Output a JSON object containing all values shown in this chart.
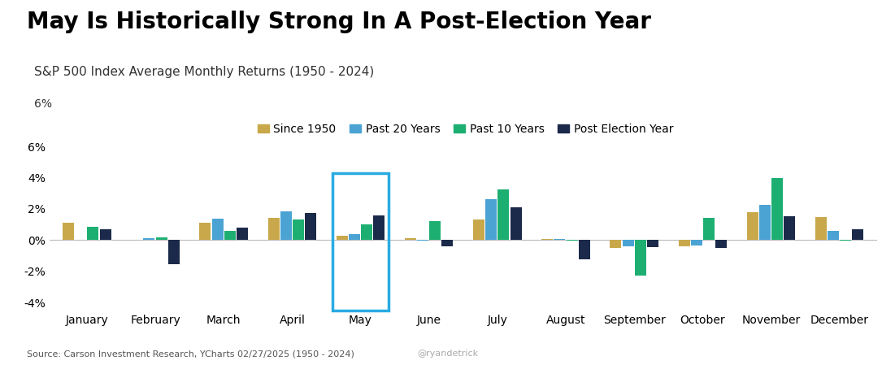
{
  "title": "May Is Historically Strong In A Post-Election Year",
  "subtitle": "S&P 500 Index Average Monthly Returns (1950 - 2024)",
  "source": "Source: Carson Investment Research, YCharts 02/27/2025 (1950 - 2024)",
  "watermark": "@ryandetrick",
  "months": [
    "January",
    "February",
    "March",
    "April",
    "May",
    "June",
    "July",
    "August",
    "September",
    "October",
    "November",
    "December"
  ],
  "series": {
    "Since 1950": [
      1.1,
      0.0,
      1.1,
      1.45,
      0.3,
      0.1,
      1.3,
      0.05,
      -0.5,
      -0.4,
      1.8,
      1.5
    ],
    "Past 20 Years": [
      0.02,
      0.1,
      1.35,
      1.85,
      0.4,
      -0.05,
      2.6,
      0.05,
      -0.4,
      -0.35,
      2.25,
      0.6
    ],
    "Past 10 Years": [
      0.85,
      0.15,
      0.6,
      1.3,
      1.0,
      1.2,
      3.25,
      -0.05,
      -2.3,
      1.4,
      4.0,
      -0.05
    ],
    "Post Election Year": [
      0.7,
      -1.55,
      0.8,
      1.75,
      1.6,
      -0.4,
      2.1,
      -1.25,
      -0.45,
      -0.5,
      1.55,
      0.7
    ]
  },
  "colors": {
    "Since 1950": "#C8A84B",
    "Past 20 Years": "#4BA3D4",
    "Past 10 Years": "#1DAF72",
    "Post Election Year": "#1B2A4A"
  },
  "highlight_month": "May",
  "highlight_color": "#29ABE2",
  "ylim": [
    -4.5,
    6.5
  ],
  "yticks": [
    -4,
    -2,
    0,
    2,
    4,
    6
  ],
  "background_color": "#ffffff",
  "bar_width": 0.18,
  "title_fontsize": 20,
  "subtitle_fontsize": 11,
  "legend_fontsize": 10,
  "tick_fontsize": 10
}
